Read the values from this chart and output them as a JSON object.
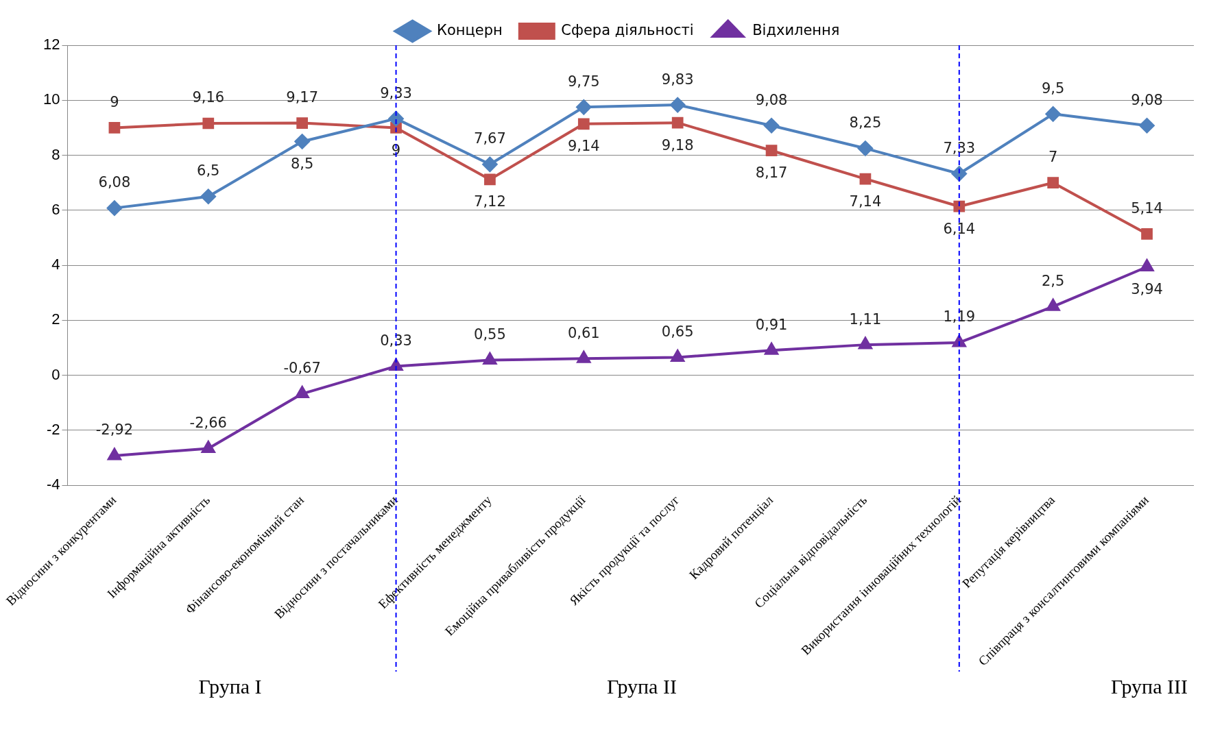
{
  "chart_data": {
    "type": "line",
    "categories": [
      "Відносини з конкурентами",
      "Інформаційна активність",
      "Фінансово-економічний стан",
      "Відносини з постачальниками",
      "Ефективність менеджменту",
      "Емоційна привабливість продукції",
      "Якість продукції та послуг",
      "Кадровий потенціал",
      "Соціальна відповідальність",
      "Використання інноваційних технологій",
      "Репутація керівництва",
      "Співпраця з консалтинговими компаніями"
    ],
    "series": [
      {
        "name": "Концерн",
        "color": "#4f81bd",
        "marker": "diamond",
        "values": [
          6.08,
          6.5,
          8.5,
          9.33,
          7.67,
          9.75,
          9.83,
          9.08,
          8.25,
          7.33,
          9.5,
          9.08
        ],
        "value_labels": [
          "6,08",
          "6,5",
          "8,5",
          "9,33",
          "7,67",
          "9,75",
          "9,83",
          "9,08",
          "8,25",
          "7,33",
          "9,5",
          "9,08"
        ]
      },
      {
        "name": "Сфера діяльності",
        "color": "#c0504d",
        "marker": "square",
        "values": [
          9,
          9.16,
          9.17,
          9,
          7.12,
          9.14,
          9.18,
          8.17,
          7.14,
          6.14,
          7,
          5.14
        ],
        "value_labels": [
          "9",
          "9,16",
          "9,17",
          "9",
          "7,12",
          "9,14",
          "9,18",
          "8,17",
          "7,14",
          "6,14",
          "7",
          "5,14"
        ]
      },
      {
        "name": "Відхилення",
        "color": "#7030a0",
        "marker": "triangle",
        "values": [
          -2.92,
          -2.66,
          -0.67,
          0.33,
          0.55,
          0.61,
          0.65,
          0.91,
          1.11,
          1.19,
          2.5,
          3.94
        ],
        "value_labels": [
          "-2,92",
          "-2,66",
          "-0,67",
          "0,33",
          "0,55",
          "0,61",
          "0,65",
          "0,91",
          "1,11",
          "1,19",
          "2,5",
          "3,94"
        ]
      }
    ],
    "ylim": [
      -4,
      12
    ],
    "yticks": [
      -4,
      -2,
      0,
      2,
      4,
      6,
      8,
      10,
      12
    ],
    "grid": "y",
    "legend": "top",
    "ref_lines": [
      {
        "axis": "x",
        "value": "Відносини з постачальниками",
        "color": "#0000ff",
        "line_style": "dashed"
      },
      {
        "axis": "x",
        "value": "Використання інноваційних технологій",
        "color": "#0000ff",
        "line_style": "dashed"
      }
    ],
    "annotations": [
      "Група I",
      "Група II",
      "Група III"
    ]
  }
}
